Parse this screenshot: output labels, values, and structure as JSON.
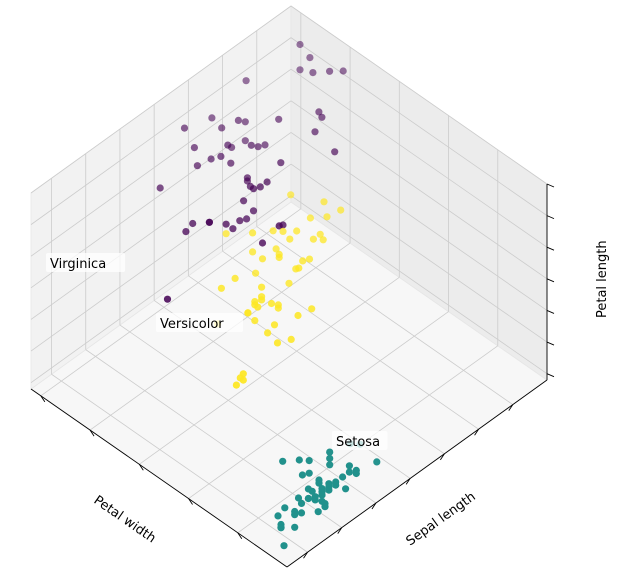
{
  "chart_data": {
    "type": "scatter",
    "projection": "3d",
    "title": "",
    "axis_labels": {
      "x": "Petal width",
      "y": "Sepal length",
      "z": "Petal length"
    },
    "tick_labels_visible": false,
    "grid": true,
    "pane_color": "#f2f2f2",
    "grid_color": "#cccccc",
    "annotations": [
      {
        "text": "Virginica"
      },
      {
        "text": "Versicolor"
      },
      {
        "text": "Setosa"
      }
    ],
    "series": [
      {
        "color": "#440154",
        "points": [
          [
            2.5,
            6.3,
            6.0
          ],
          [
            1.9,
            5.8,
            5.1
          ],
          [
            2.1,
            7.1,
            5.9
          ],
          [
            1.8,
            6.3,
            5.6
          ],
          [
            2.2,
            6.5,
            5.8
          ],
          [
            2.1,
            7.6,
            6.6
          ],
          [
            1.7,
            4.9,
            4.5
          ],
          [
            1.8,
            7.3,
            6.3
          ],
          [
            1.8,
            6.7,
            5.8
          ],
          [
            2.5,
            7.2,
            6.1
          ],
          [
            2.0,
            6.5,
            5.1
          ],
          [
            1.9,
            6.4,
            5.3
          ],
          [
            2.1,
            6.8,
            5.5
          ],
          [
            2.0,
            5.7,
            5.0
          ],
          [
            2.4,
            5.8,
            5.1
          ],
          [
            2.3,
            6.4,
            5.3
          ],
          [
            1.8,
            6.5,
            5.5
          ],
          [
            2.2,
            7.7,
            6.7
          ],
          [
            2.3,
            7.7,
            6.9
          ],
          [
            1.5,
            6.0,
            5.0
          ],
          [
            2.3,
            6.9,
            5.7
          ],
          [
            2.0,
            5.6,
            4.9
          ],
          [
            2.0,
            7.7,
            6.7
          ],
          [
            1.8,
            6.3,
            4.9
          ],
          [
            2.1,
            6.7,
            5.7
          ],
          [
            1.8,
            7.2,
            6.0
          ],
          [
            1.8,
            6.2,
            4.8
          ],
          [
            1.8,
            6.1,
            4.9
          ],
          [
            2.1,
            6.4,
            5.6
          ],
          [
            1.6,
            7.2,
            5.8
          ],
          [
            1.9,
            7.4,
            6.1
          ],
          [
            2.0,
            7.9,
            6.4
          ],
          [
            2.2,
            6.4,
            5.6
          ],
          [
            1.5,
            6.3,
            5.1
          ],
          [
            1.4,
            6.1,
            5.6
          ],
          [
            2.3,
            7.7,
            6.1
          ],
          [
            2.4,
            6.3,
            5.6
          ],
          [
            1.8,
            6.4,
            5.5
          ],
          [
            1.8,
            6.0,
            4.8
          ],
          [
            2.1,
            6.9,
            5.4
          ],
          [
            2.4,
            6.7,
            5.6
          ],
          [
            2.3,
            6.9,
            5.1
          ],
          [
            1.9,
            5.8,
            5.1
          ],
          [
            2.3,
            6.8,
            5.9
          ],
          [
            2.5,
            6.7,
            5.7
          ],
          [
            2.3,
            6.7,
            5.2
          ],
          [
            1.9,
            6.3,
            5.0
          ],
          [
            2.0,
            6.5,
            5.2
          ],
          [
            2.3,
            6.2,
            5.4
          ],
          [
            1.8,
            5.9,
            5.1
          ]
        ]
      },
      {
        "color": "#fde725",
        "points": [
          [
            1.4,
            7.0,
            4.7
          ],
          [
            1.5,
            6.4,
            4.5
          ],
          [
            1.5,
            6.9,
            4.9
          ],
          [
            1.3,
            5.5,
            4.0
          ],
          [
            1.5,
            6.5,
            4.6
          ],
          [
            1.3,
            5.7,
            4.5
          ],
          [
            1.6,
            6.3,
            4.7
          ],
          [
            1.0,
            4.9,
            3.3
          ],
          [
            1.3,
            6.6,
            4.6
          ],
          [
            1.4,
            5.2,
            3.9
          ],
          [
            1.0,
            5.0,
            3.5
          ],
          [
            1.5,
            5.9,
            4.2
          ],
          [
            1.0,
            6.0,
            4.0
          ],
          [
            1.4,
            6.1,
            4.7
          ],
          [
            1.3,
            5.6,
            3.6
          ],
          [
            1.4,
            6.7,
            4.4
          ],
          [
            1.5,
            5.6,
            4.5
          ],
          [
            1.0,
            5.8,
            4.1
          ],
          [
            1.5,
            6.2,
            4.5
          ],
          [
            1.1,
            5.6,
            3.9
          ],
          [
            1.8,
            5.9,
            4.8
          ],
          [
            1.3,
            6.1,
            4.0
          ],
          [
            1.5,
            6.3,
            4.9
          ],
          [
            1.2,
            6.1,
            4.7
          ],
          [
            1.3,
            6.4,
            4.3
          ],
          [
            1.4,
            6.6,
            4.4
          ],
          [
            1.4,
            6.8,
            4.8
          ],
          [
            1.7,
            6.7,
            5.0
          ],
          [
            1.5,
            6.0,
            4.5
          ],
          [
            1.0,
            5.7,
            3.5
          ],
          [
            1.1,
            5.5,
            3.8
          ],
          [
            1.0,
            5.5,
            3.7
          ],
          [
            1.2,
            5.8,
            3.9
          ],
          [
            1.6,
            6.0,
            5.1
          ],
          [
            1.5,
            5.4,
            4.5
          ],
          [
            1.6,
            6.0,
            4.5
          ],
          [
            1.5,
            6.7,
            4.7
          ],
          [
            1.3,
            6.3,
            4.4
          ],
          [
            1.3,
            5.6,
            4.1
          ],
          [
            1.3,
            5.5,
            4.0
          ],
          [
            1.2,
            5.5,
            4.4
          ],
          [
            1.4,
            6.1,
            4.6
          ],
          [
            1.2,
            5.8,
            4.0
          ],
          [
            1.0,
            5.0,
            3.3
          ],
          [
            1.3,
            5.6,
            4.2
          ],
          [
            1.2,
            5.7,
            4.2
          ],
          [
            1.3,
            5.7,
            4.2
          ],
          [
            1.3,
            6.2,
            4.3
          ],
          [
            1.1,
            5.1,
            3.0
          ],
          [
            1.3,
            5.7,
            4.1
          ]
        ]
      },
      {
        "color": "#21918c",
        "points": [
          [
            0.2,
            5.1,
            1.4
          ],
          [
            0.2,
            4.9,
            1.4
          ],
          [
            0.2,
            4.7,
            1.3
          ],
          [
            0.2,
            4.6,
            1.5
          ],
          [
            0.2,
            5.0,
            1.4
          ],
          [
            0.4,
            5.4,
            1.7
          ],
          [
            0.3,
            4.6,
            1.4
          ],
          [
            0.2,
            5.0,
            1.5
          ],
          [
            0.2,
            4.4,
            1.4
          ],
          [
            0.1,
            4.9,
            1.5
          ],
          [
            0.2,
            5.4,
            1.5
          ],
          [
            0.2,
            4.8,
            1.6
          ],
          [
            0.1,
            4.8,
            1.4
          ],
          [
            0.1,
            4.3,
            1.1
          ],
          [
            0.2,
            5.8,
            1.2
          ],
          [
            0.4,
            5.7,
            1.5
          ],
          [
            0.4,
            5.4,
            1.3
          ],
          [
            0.3,
            5.1,
            1.4
          ],
          [
            0.3,
            5.7,
            1.7
          ],
          [
            0.3,
            5.1,
            1.5
          ],
          [
            0.2,
            5.4,
            1.7
          ],
          [
            0.4,
            5.1,
            1.5
          ],
          [
            0.2,
            4.6,
            1.0
          ],
          [
            0.5,
            5.1,
            1.7
          ],
          [
            0.2,
            4.8,
            1.9
          ],
          [
            0.2,
            5.0,
            1.6
          ],
          [
            0.4,
            5.0,
            1.6
          ],
          [
            0.2,
            5.2,
            1.5
          ],
          [
            0.2,
            5.2,
            1.4
          ],
          [
            0.2,
            4.7,
            1.6
          ],
          [
            0.2,
            4.8,
            1.6
          ],
          [
            0.4,
            5.4,
            1.5
          ],
          [
            0.1,
            5.2,
            1.5
          ],
          [
            0.2,
            5.5,
            1.4
          ],
          [
            0.2,
            4.9,
            1.5
          ],
          [
            0.2,
            5.0,
            1.2
          ],
          [
            0.2,
            5.5,
            1.3
          ],
          [
            0.1,
            4.9,
            1.4
          ],
          [
            0.2,
            4.4,
            1.3
          ],
          [
            0.2,
            5.1,
            1.5
          ],
          [
            0.3,
            5.0,
            1.3
          ],
          [
            0.3,
            4.5,
            1.3
          ],
          [
            0.2,
            4.4,
            1.3
          ],
          [
            0.6,
            5.0,
            1.6
          ],
          [
            0.4,
            5.1,
            1.9
          ],
          [
            0.3,
            4.8,
            1.4
          ],
          [
            0.2,
            5.1,
            1.6
          ],
          [
            0.2,
            4.6,
            1.4
          ],
          [
            0.2,
            5.3,
            1.5
          ],
          [
            0.2,
            5.0,
            1.4
          ]
        ]
      }
    ]
  }
}
